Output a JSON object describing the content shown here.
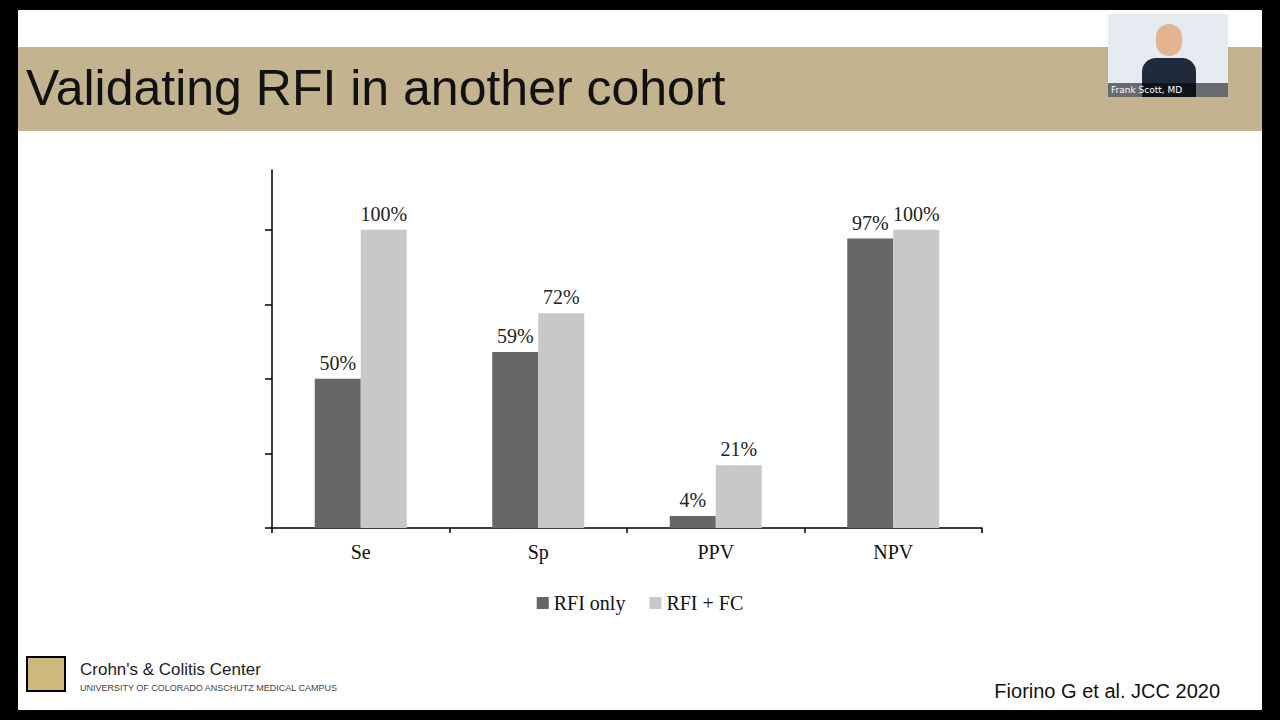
{
  "chart_data": {
    "type": "bar",
    "title": "Validating RFI in another cohort",
    "categories": [
      "Se",
      "Sp",
      "PPV",
      "NPV"
    ],
    "series": [
      {
        "name": "RFI only",
        "color": "#666666",
        "values": [
          50,
          59,
          4,
          97
        ],
        "value_labels": [
          "50%",
          "59%",
          "4%",
          "97%"
        ]
      },
      {
        "name": "RFI + FC",
        "color": "#c8c8c8",
        "values": [
          100,
          72,
          21,
          100
        ],
        "value_labels": [
          "100%",
          "72%",
          "21%",
          "100%"
        ]
      }
    ],
    "ylim": [
      0,
      120
    ],
    "yticks": [
      0,
      25,
      50,
      75,
      100
    ],
    "grid": false,
    "legend": "bottom",
    "data_labels": true,
    "tick_labels": "x",
    "annotations": [
      "Fiorino G et al. JCC 2020",
      "Crohn's & Colitis Center",
      "UNIVERSITY OF COLORADO ANSCHUTZ MEDICAL CAMPUS",
      "Frank Scott, MD"
    ]
  }
}
